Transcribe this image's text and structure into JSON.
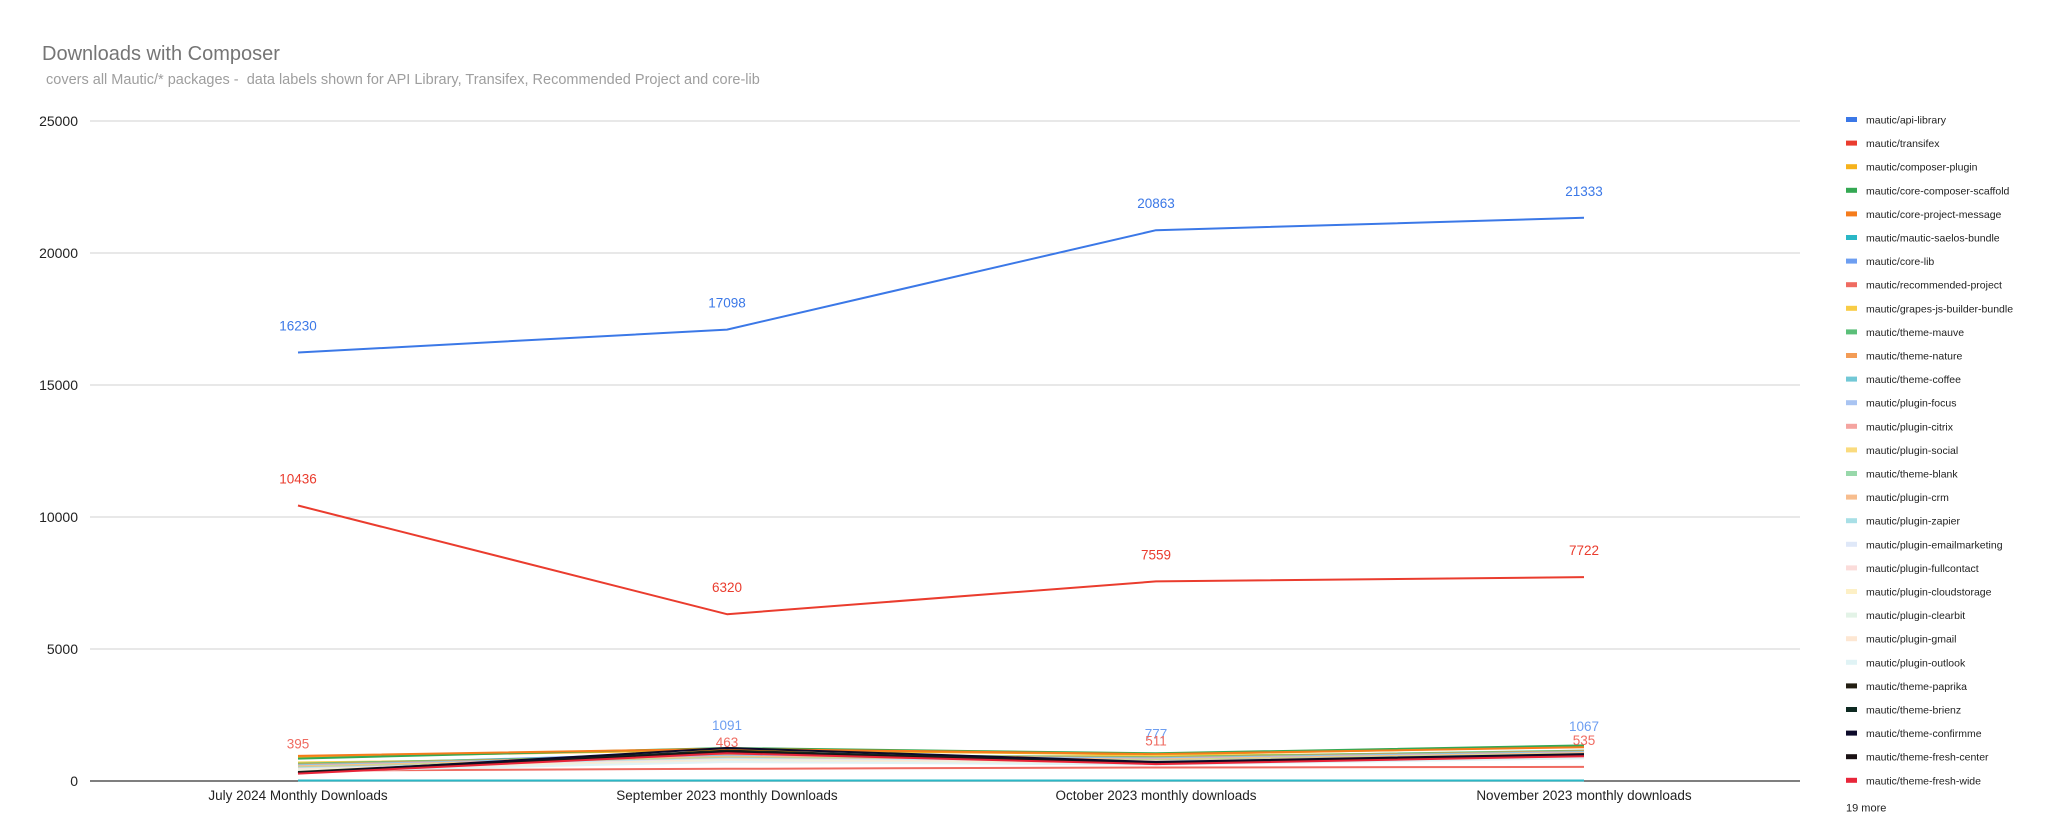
{
  "chart_data": {
    "type": "line",
    "title": "Downloads with Composer",
    "subtitle": " covers all Mautic/* packages -  data labels shown for API Library, Transifex, Recommended Project and core-lib",
    "categories": [
      "July 2024 Monthly Downloads",
      "September 2023 monthly Downloads",
      "October 2023 monthly downloads",
      "November 2023 monthly downloads"
    ],
    "ylim": [
      0,
      25000
    ],
    "yticks": [
      "0",
      "5000",
      "10000",
      "15000",
      "20000",
      "25000"
    ],
    "grid": true,
    "legend_position": "right",
    "series": [
      {
        "name": "mautic/api-library",
        "color": "#3b78e7",
        "values": [
          16230,
          17098,
          20863,
          21333
        ],
        "labels": [
          "16230",
          "17098",
          "20863",
          "21333"
        ]
      },
      {
        "name": "mautic/transifex",
        "color": "#ea3c2e",
        "values": [
          10436,
          6320,
          7559,
          7722
        ],
        "labels": [
          "10436",
          "6320",
          "7559",
          "7722"
        ]
      },
      {
        "name": "mautic/composer-plugin",
        "color": "#f6b21b",
        "values": [
          900,
          1180,
          1000,
          1300
        ]
      },
      {
        "name": "mautic/core-composer-scaffold",
        "color": "#34a853",
        "values": [
          850,
          1250,
          1050,
          1350
        ]
      },
      {
        "name": "mautic/core-project-message",
        "color": "#f57c1c",
        "values": [
          950,
          1220,
          1020,
          1280
        ]
      },
      {
        "name": "mautic/mautic-saelos-bundle",
        "color": "#2ab7c6",
        "values": [
          20,
          20,
          20,
          20
        ]
      },
      {
        "name": "mautic/core-lib",
        "color": "#6d9ef1",
        "values": [
          600,
          1091,
          777,
          1067
        ],
        "labels": [
          "",
          "1091",
          "777",
          "1067"
        ]
      },
      {
        "name": "mautic/recommended-project",
        "color": "#ef6b61",
        "values": [
          395,
          463,
          511,
          535
        ],
        "labels": [
          "395",
          "463",
          "511",
          "535"
        ]
      },
      {
        "name": "mautic/grapes-js-builder-bundle",
        "color": "#f8cc45",
        "values": [
          700,
          900,
          950,
          1100
        ]
      },
      {
        "name": "mautic/theme-mauve",
        "color": "#5bbf79",
        "values": [
          650,
          1000,
          900,
          1150
        ]
      },
      {
        "name": "mautic/theme-nature",
        "color": "#f39c56",
        "values": [
          620,
          980,
          880,
          1120
        ]
      },
      {
        "name": "mautic/theme-coffee",
        "color": "#72c8d6",
        "values": [
          600,
          960,
          860,
          1100
        ]
      },
      {
        "name": "mautic/plugin-focus",
        "color": "#a9c4f2",
        "values": [
          580,
          940,
          840,
          1080
        ]
      },
      {
        "name": "mautic/plugin-citrix",
        "color": "#f4a4a0",
        "values": [
          560,
          920,
          820,
          1060
        ]
      },
      {
        "name": "mautic/plugin-social",
        "color": "#fadb7e",
        "values": [
          540,
          900,
          800,
          1040
        ]
      },
      {
        "name": "mautic/theme-blank",
        "color": "#98d8aa",
        "values": [
          520,
          880,
          780,
          1020
        ]
      },
      {
        "name": "mautic/plugin-crm",
        "color": "#f7bd8e",
        "values": [
          500,
          860,
          760,
          1000
        ]
      },
      {
        "name": "mautic/plugin-zapier",
        "color": "#a8dfe6",
        "values": [
          480,
          840,
          740,
          980
        ]
      },
      {
        "name": "mautic/plugin-emailmarketing",
        "color": "#dfe8f8",
        "values": [
          460,
          820,
          720,
          960
        ]
      },
      {
        "name": "mautic/plugin-fullcontact",
        "color": "#fbdcda",
        "values": [
          440,
          800,
          700,
          940
        ]
      },
      {
        "name": "mautic/plugin-cloudstorage",
        "color": "#fdf0c6",
        "values": [
          420,
          780,
          680,
          920
        ]
      },
      {
        "name": "mautic/plugin-clearbit",
        "color": "#e3f3e7",
        "values": [
          400,
          760,
          660,
          900
        ]
      },
      {
        "name": "mautic/plugin-gmail",
        "color": "#fde7d3",
        "values": [
          380,
          740,
          640,
          880
        ]
      },
      {
        "name": "mautic/plugin-outlook",
        "color": "#e0f3f5",
        "values": [
          360,
          720,
          620,
          860
        ]
      },
      {
        "name": "mautic/theme-paprika",
        "color": "#231e12",
        "values": [
          340,
          1150,
          700,
          1000
        ]
      },
      {
        "name": "mautic/theme-brienz",
        "color": "#0e2a22",
        "values": [
          320,
          1130,
          680,
          980
        ]
      },
      {
        "name": "mautic/theme-confirmme",
        "color": "#0c0a2a",
        "values": [
          300,
          1250,
          720,
          1020
        ]
      },
      {
        "name": "mautic/theme-fresh-center",
        "color": "#1a1114",
        "values": [
          290,
          1100,
          660,
          960
        ]
      },
      {
        "name": "mautic/theme-fresh-wide",
        "color": "#e8263a",
        "values": [
          280,
          1050,
          640,
          940
        ]
      }
    ],
    "legend_more": "19 more"
  }
}
